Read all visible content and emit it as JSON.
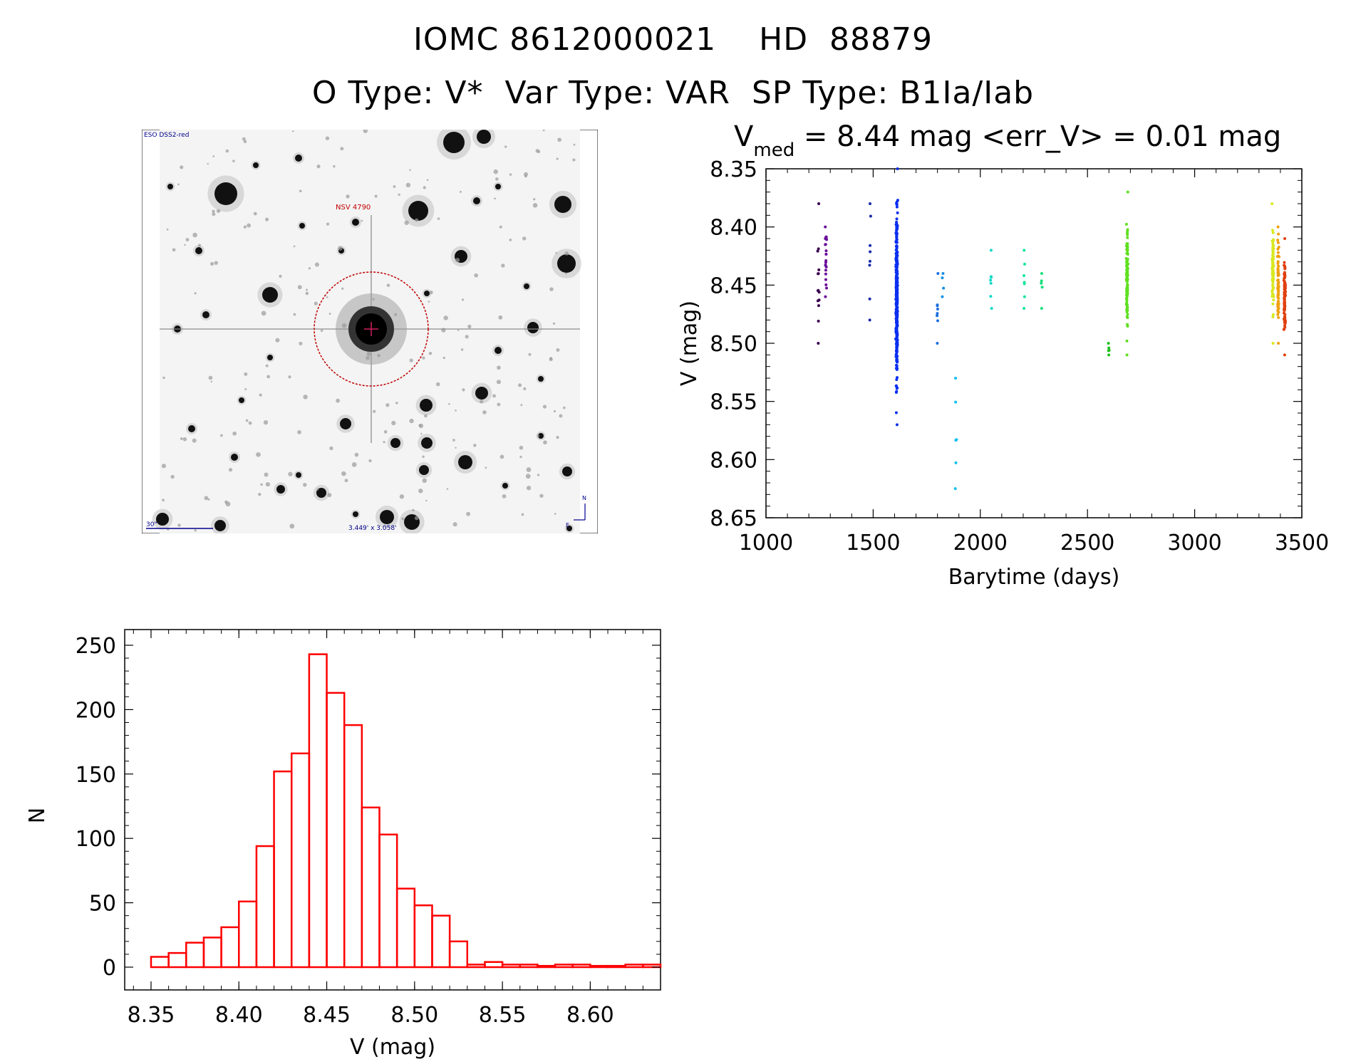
{
  "header": {
    "line1": "IOMC 8612000021    HD  88879",
    "line2": "O Type: V*  Var Type: VAR  SP Type: B1Ia/Iab"
  },
  "image_panel": {
    "corner_label": "ESO DSS2-red",
    "object_label": "NSV 4790",
    "scale_label": "30\"",
    "size_label": "3.449' x 3.058'",
    "north_label": "N",
    "east_label": "E"
  },
  "colors": {
    "histogram": "#ff0000",
    "marker": "#c00000",
    "wcs_text": "#00008b"
  },
  "chart_data": [
    {
      "type": "scatter",
      "title_main": "V",
      "title_sub": "med",
      "title_rest": " = 8.44 mag <err_V> = 0.01 mag",
      "xlabel": "Barytime (days)",
      "ylabel": "V (mag)",
      "xlim": [
        1000,
        3500
      ],
      "ylim": [
        8.35,
        8.65
      ],
      "y_inverted": true,
      "xticks": [
        "1000",
        "1500",
        "2000",
        "2500",
        "3000",
        "3500"
      ],
      "yticks": [
        "8.35",
        "8.40",
        "8.45",
        "8.50",
        "8.55",
        "8.60",
        "8.65"
      ],
      "groups": [
        {
          "x": 1245,
          "ymin": 8.38,
          "ymax": 8.5,
          "n": 14,
          "color": "#3a0050"
        },
        {
          "x": 1280,
          "ymin": 8.4,
          "ymax": 8.46,
          "n": 22,
          "color": "#6a0f9a"
        },
        {
          "x": 1485,
          "ymin": 8.38,
          "ymax": 8.48,
          "n": 8,
          "color": "#1a2aa8"
        },
        {
          "x": 1610,
          "ymin": 8.35,
          "ymax": 8.57,
          "n": 420,
          "color": "#0a2ff0"
        },
        {
          "x": 1800,
          "ymin": 8.44,
          "ymax": 8.5,
          "n": 8,
          "color": "#1c6fe0"
        },
        {
          "x": 1825,
          "ymin": 8.44,
          "ymax": 8.46,
          "n": 4,
          "color": "#1890e0"
        },
        {
          "x": 1885,
          "ymin": 8.53,
          "ymax": 8.625,
          "n": 6,
          "color": "#10c0ee"
        },
        {
          "x": 2050,
          "ymin": 8.42,
          "ymax": 8.47,
          "n": 7,
          "color": "#15d8c8"
        },
        {
          "x": 2205,
          "ymin": 8.42,
          "ymax": 8.47,
          "n": 7,
          "color": "#18e4a0"
        },
        {
          "x": 2285,
          "ymin": 8.44,
          "ymax": 8.47,
          "n": 5,
          "color": "#14e07a"
        },
        {
          "x": 2600,
          "ymin": 8.5,
          "ymax": 8.51,
          "n": 5,
          "color": "#20c020"
        },
        {
          "x": 2685,
          "ymin": 8.37,
          "ymax": 8.51,
          "n": 110,
          "color": "#60e020"
        },
        {
          "x": 3365,
          "ymin": 8.38,
          "ymax": 8.5,
          "n": 90,
          "color": "#d8e820"
        },
        {
          "x": 3390,
          "ymin": 8.4,
          "ymax": 8.5,
          "n": 70,
          "color": "#f0a010"
        },
        {
          "x": 3420,
          "ymin": 8.41,
          "ymax": 8.51,
          "n": 90,
          "color": "#e04010"
        }
      ]
    },
    {
      "type": "bar",
      "xlabel": "V (mag)",
      "ylabel": "N",
      "xlim": [
        8.35,
        8.63
      ],
      "ylim": [
        0,
        250
      ],
      "bin_width": 0.01,
      "bin_start": 8.35,
      "values": [
        8,
        11,
        19,
        23,
        31,
        51,
        94,
        152,
        166,
        243,
        213,
        188,
        124,
        103,
        61,
        48,
        40,
        20,
        2,
        4,
        2,
        2,
        1,
        2,
        2,
        1,
        1,
        2,
        2
      ],
      "xticks": [
        "8.35",
        "8.40",
        "8.45",
        "8.50",
        "8.55",
        "8.60"
      ],
      "yticks": [
        "0",
        "50",
        "100",
        "150",
        "200",
        "250"
      ]
    }
  ]
}
